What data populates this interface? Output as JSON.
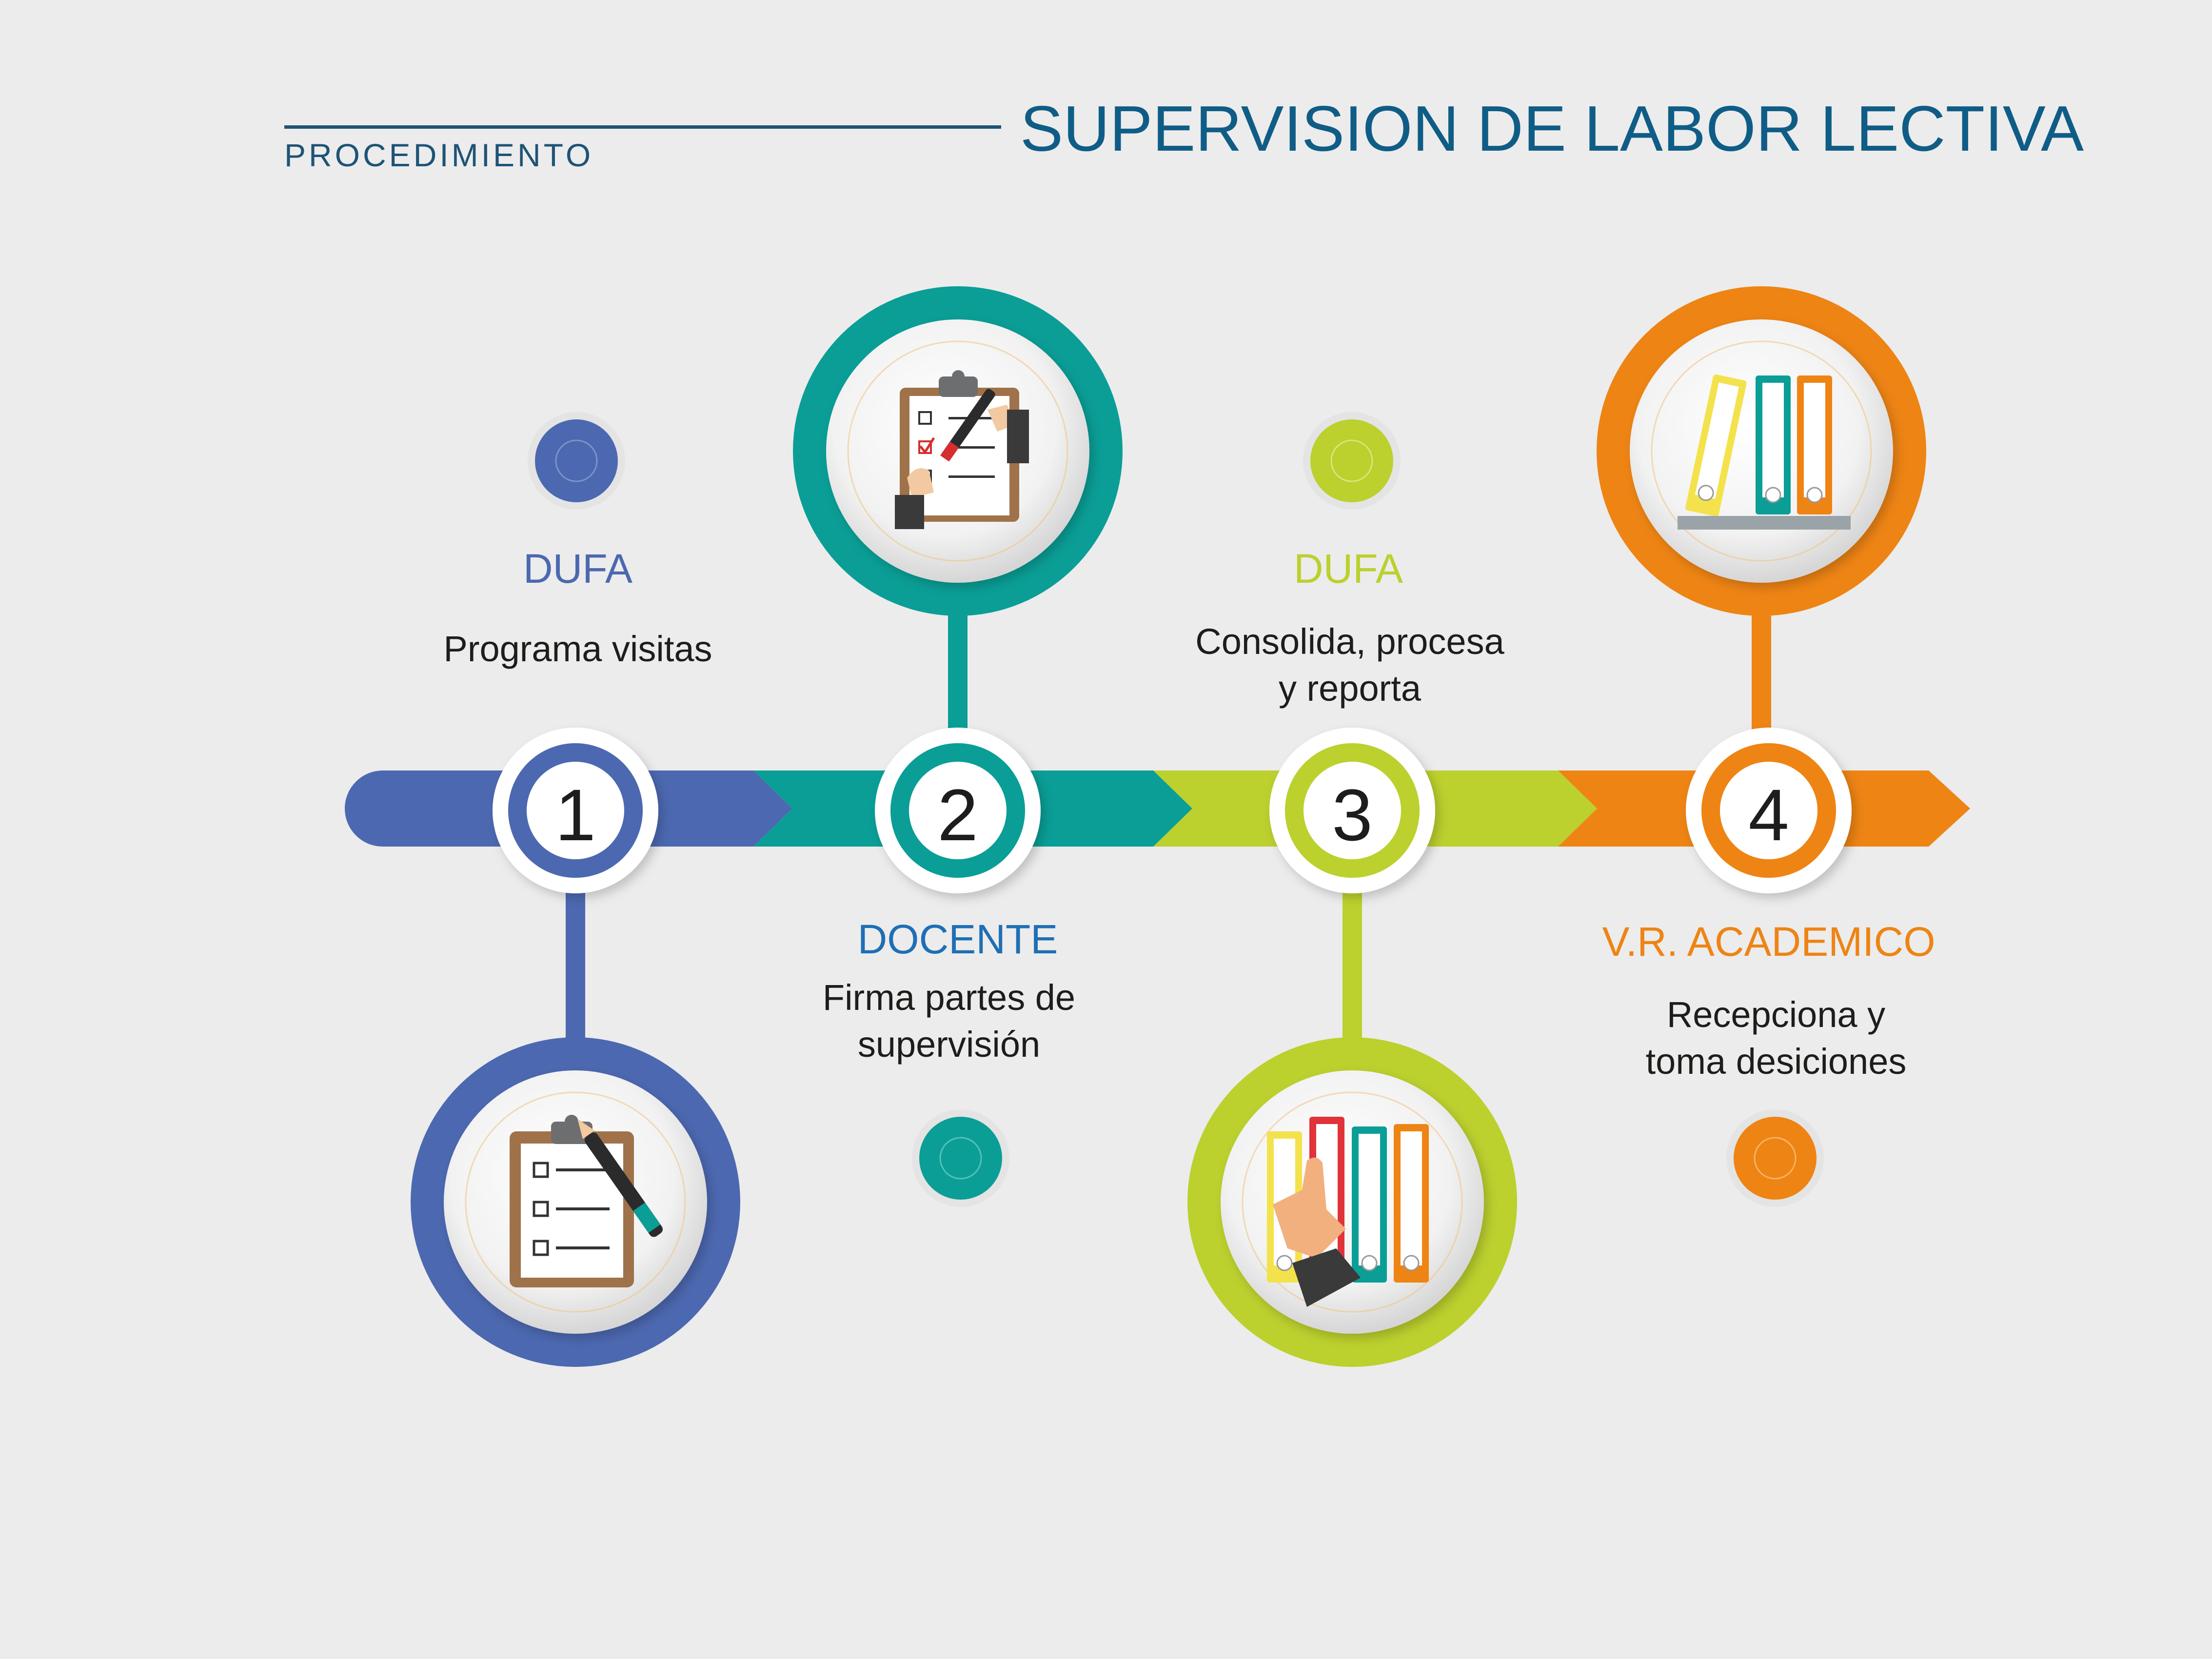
{
  "header": {
    "subtitle": "PROCEDIMIENTO",
    "title": "SUPERVISION DE LABOR LECTIVA"
  },
  "colors": {
    "background": "#ececec",
    "blue": "#4c68b0",
    "teal": "#0a9e96",
    "lime": "#bcd02e",
    "orange": "#ee8414",
    "title": "#0f5d86"
  },
  "steps": [
    {
      "number": "1",
      "role": "DUFA",
      "desc_line1": "Programa visitas",
      "desc_line2": "",
      "icon": "clipboard-pen-icon",
      "color": "#4c68b0",
      "role_color": "#4c68b0"
    },
    {
      "number": "2",
      "role": "DOCENTE",
      "desc_line1": "Firma partes de",
      "desc_line2": "supervisión",
      "icon": "clipboard-signing-icon",
      "color": "#0a9e96",
      "role_color": "#1e6fb5"
    },
    {
      "number": "3",
      "role": "DUFA",
      "desc_line1": "Consolida, procesa",
      "desc_line2": "y reporta",
      "icon": "binders-selecting-icon",
      "color": "#bcd02e",
      "role_color": "#bcd02e"
    },
    {
      "number": "4",
      "role": "V.R. ACADEMICO",
      "desc_line1": "Recepciona y",
      "desc_line2": "toma desiciones",
      "icon": "binders-shelf-icon",
      "color": "#ee8414",
      "role_color": "#ee8414"
    }
  ]
}
